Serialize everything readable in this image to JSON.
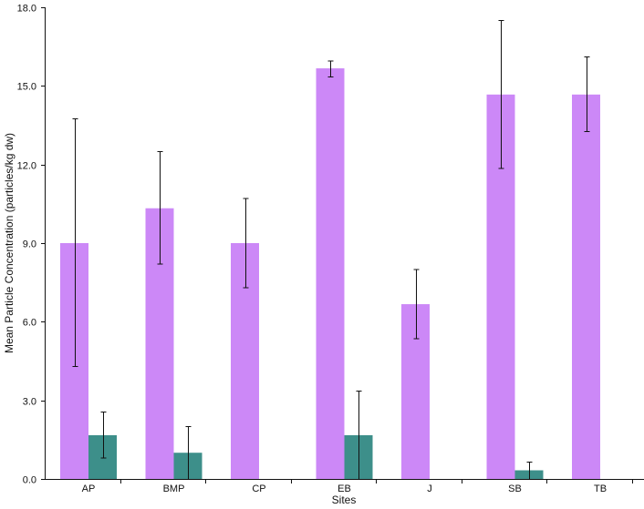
{
  "chart_data": {
    "type": "bar",
    "title": "",
    "xlabel": "Sites",
    "ylabel": "Mean Particle Concentration (particles/kg dw)",
    "categories": [
      "AP",
      "BMP",
      "CP",
      "EB",
      "J",
      "SB",
      "TB"
    ],
    "ylim": [
      0,
      18.0
    ],
    "yticks": [
      0.0,
      3.0,
      6.0,
      9.0,
      12.0,
      15.0,
      18.0
    ],
    "ytick_labels": [
      "0.0",
      "3.0",
      "6.0",
      "9.0",
      "12.0",
      "15.0",
      "18.0"
    ],
    "grid": false,
    "legend": "none",
    "series": [
      {
        "color": "#cc88f7",
        "values": [
          9.0,
          10.33,
          9.0,
          15.67,
          6.67,
          14.67,
          14.67
        ],
        "error_low": [
          4.3,
          8.2,
          7.3,
          15.35,
          5.35,
          11.85,
          13.25
        ],
        "error_high": [
          13.75,
          12.5,
          10.7,
          15.95,
          8.0,
          17.5,
          16.1
        ]
      },
      {
        "color": "#3d8f8a",
        "values": [
          1.67,
          1.0,
          0,
          1.67,
          0,
          0.33,
          0
        ],
        "error_low": [
          0.8,
          0,
          null,
          0,
          null,
          0,
          null
        ],
        "error_high": [
          2.55,
          2.0,
          null,
          3.35,
          null,
          0.65,
          null
        ]
      }
    ]
  }
}
